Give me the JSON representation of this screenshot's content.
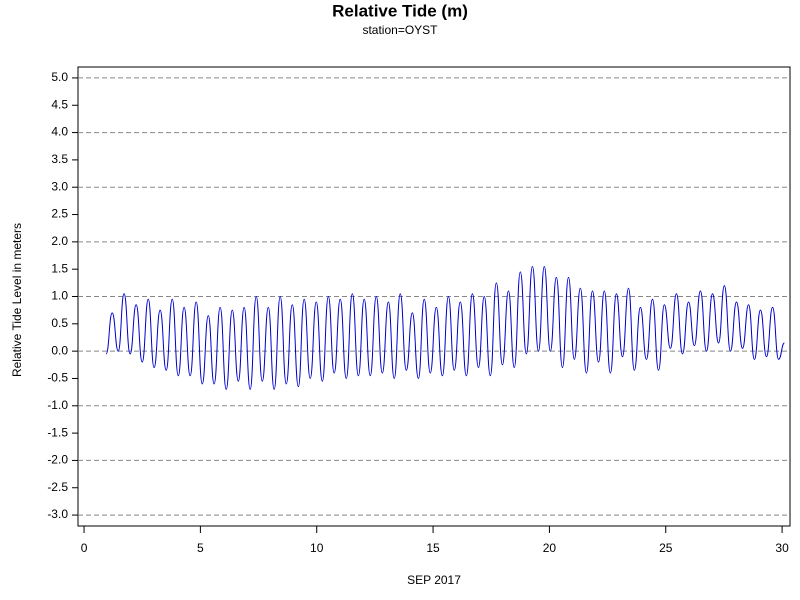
{
  "chart_data": {
    "type": "line",
    "title": "Relative Tide (m)",
    "subtitle": "station=OYST",
    "xlabel": "SEP 2017",
    "ylabel": "Relative Tide Level in meters",
    "xlim": [
      -0.26,
      30.34
    ],
    "ylim": [
      -3.2,
      5.2
    ],
    "xticks": [
      0,
      5,
      10,
      15,
      20,
      25,
      30
    ],
    "yticks": [
      {
        "value": -3,
        "label": "-3.0"
      },
      -2.5,
      {
        "value": -2,
        "label": "-2.0"
      },
      -1.5,
      {
        "value": -1,
        "label": "-1.0"
      },
      -0.5,
      {
        "value": 0,
        "label": "0.0"
      },
      0.5,
      {
        "value": 1,
        "label": "1.0"
      },
      1.5,
      {
        "value": 2,
        "label": "2.0"
      },
      2.5,
      {
        "value": 3,
        "label": "3.0"
      },
      3.5,
      {
        "value": 4,
        "label": "4.0"
      },
      4.5,
      {
        "value": 5,
        "label": "5.0"
      }
    ],
    "grid": true,
    "series": [
      {
        "color": "#0000cc",
        "x": [
          0.95,
          1.21,
          1.47,
          1.72,
          1.98,
          2.24,
          2.5,
          2.76,
          3.01,
          3.27,
          3.53,
          3.79,
          4.05,
          4.3,
          4.56,
          4.82,
          5.08,
          5.34,
          5.59,
          5.85,
          6.11,
          6.37,
          6.63,
          6.88,
          7.14,
          7.4,
          7.66,
          7.92,
          8.17,
          8.43,
          8.69,
          8.95,
          9.21,
          9.46,
          9.72,
          9.98,
          10.24,
          10.5,
          10.75,
          11.01,
          11.27,
          11.53,
          11.79,
          12.04,
          12.3,
          12.56,
          12.82,
          13.08,
          13.33,
          13.59,
          13.85,
          14.11,
          14.37,
          14.62,
          14.88,
          15.14,
          15.4,
          15.66,
          15.91,
          16.17,
          16.43,
          16.69,
          16.95,
          17.2,
          17.46,
          17.72,
          17.98,
          18.24,
          18.49,
          18.75,
          19.01,
          19.27,
          19.53,
          19.78,
          20.04,
          20.3,
          20.56,
          20.82,
          21.07,
          21.33,
          21.59,
          21.85,
          22.11,
          22.36,
          22.62,
          22.88,
          23.14,
          23.4,
          23.65,
          23.91,
          24.17,
          24.43,
          24.69,
          24.94,
          25.2,
          25.46,
          25.72,
          25.98,
          26.23,
          26.49,
          26.75,
          27.01,
          27.27,
          27.52,
          27.78,
          28.04,
          28.3,
          28.56,
          28.81,
          29.07,
          29.33,
          29.59,
          29.85,
          30.1
        ],
        "values": [
          -0.05,
          0.7,
          0.0,
          1.05,
          -0.05,
          0.85,
          -0.2,
          0.95,
          -0.3,
          0.75,
          -0.35,
          0.95,
          -0.45,
          0.8,
          -0.45,
          0.9,
          -0.6,
          0.65,
          -0.6,
          0.8,
          -0.7,
          0.75,
          -0.55,
          0.8,
          -0.7,
          1.0,
          -0.55,
          0.8,
          -0.7,
          1.0,
          -0.6,
          0.85,
          -0.65,
          0.95,
          -0.5,
          0.9,
          -0.55,
          1.0,
          -0.4,
          0.95,
          -0.5,
          1.05,
          -0.45,
          0.95,
          -0.45,
          1.0,
          -0.4,
          0.9,
          -0.5,
          1.05,
          -0.35,
          0.7,
          -0.5,
          0.95,
          -0.4,
          0.8,
          -0.45,
          1.0,
          -0.35,
          0.9,
          -0.45,
          1.05,
          -0.3,
          1.0,
          -0.45,
          1.25,
          -0.25,
          1.1,
          -0.3,
          1.45,
          -0.05,
          1.55,
          0.0,
          1.55,
          0.0,
          1.35,
          -0.3,
          1.35,
          -0.15,
          1.15,
          -0.4,
          1.1,
          -0.2,
          1.1,
          -0.4,
          1.05,
          -0.1,
          1.15,
          -0.35,
          0.8,
          -0.15,
          0.95,
          -0.35,
          0.85,
          0.05,
          1.05,
          -0.05,
          0.9,
          0.1,
          1.1,
          0.0,
          1.05,
          0.15,
          1.2,
          0.0,
          0.9,
          0.05,
          0.85,
          -0.15,
          0.75,
          -0.1,
          0.8,
          -0.15,
          0.15
        ]
      }
    ]
  }
}
